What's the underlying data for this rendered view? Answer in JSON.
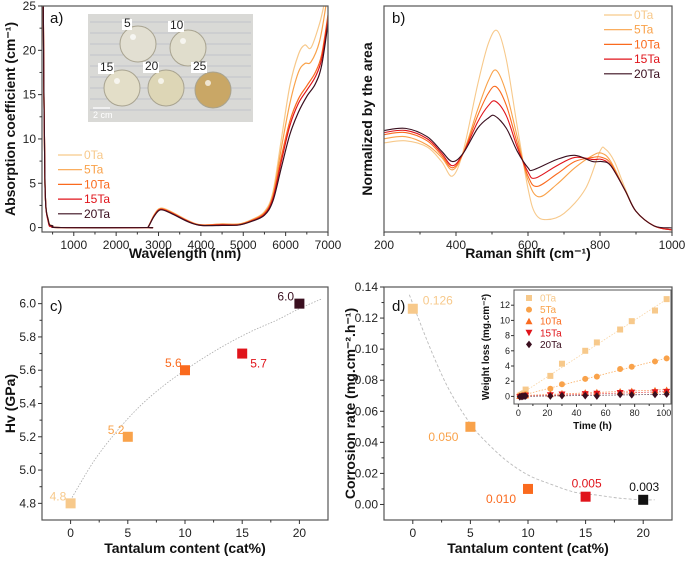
{
  "colors": {
    "0Ta": "#f7c98b",
    "5Ta": "#f9a24a",
    "10Ta": "#fa6a1e",
    "15Ta": "#e0141b",
    "20Ta": "#3a0f1f",
    "20Ta_d": "#111111"
  },
  "chart_data": [
    {
      "id": "a",
      "type": "line",
      "panel_label": "a)",
      "title": "",
      "xlabel": "Wavelength (nm)",
      "ylabel": "Absorption coefficient (cm⁻¹)",
      "xlim": [
        250,
        7000
      ],
      "ylim": [
        -0.5,
        25
      ],
      "xticks": [
        1000,
        2000,
        3000,
        4000,
        5000,
        6000,
        7000
      ],
      "yticks": [
        0,
        5,
        10,
        15,
        20,
        25
      ],
      "legend": {
        "placement": "left-middle",
        "entries": [
          "0Ta",
          "5Ta",
          "10Ta",
          "15Ta",
          "20Ta"
        ]
      },
      "inset_photo": {
        "labels": [
          "5",
          "10",
          "15",
          "20",
          "25"
        ],
        "scale_bar": "2 cm"
      },
      "series": [
        {
          "name": "0Ta",
          "x": [
            280,
            320,
            400,
            500,
            700,
            2700,
            2760,
            2900,
            3050,
            3300,
            3700,
            4000,
            4500,
            4900,
            5200,
            5500,
            5700,
            5900,
            6100,
            6300,
            6450,
            6600,
            6800,
            6900
          ],
          "y": [
            25,
            5,
            0.9,
            0.2,
            0,
            0,
            0.1,
            1.5,
            2.2,
            1.8,
            0.8,
            0.3,
            0.4,
            0.4,
            0.9,
            1.8,
            4,
            10,
            16,
            19.5,
            20.6,
            20.3,
            23,
            25
          ]
        },
        {
          "name": "5Ta",
          "x": [
            280,
            320,
            400,
            500,
            700,
            2700,
            2760,
            2900,
            3050,
            3300,
            3700,
            4000,
            4500,
            4900,
            5200,
            5500,
            5700,
            5900,
            6100,
            6300,
            6450,
            6600,
            6800,
            6950
          ],
          "y": [
            25,
            5,
            0.8,
            0.2,
            0,
            0,
            0.1,
            1.4,
            2.15,
            1.75,
            0.75,
            0.3,
            0.4,
            0.4,
            0.85,
            1.7,
            3.7,
            9,
            14,
            17.5,
            18.5,
            18.7,
            21,
            25
          ]
        },
        {
          "name": "10Ta",
          "x": [
            280,
            320,
            400,
            500,
            700,
            2700,
            2760,
            2900,
            3050,
            3300,
            3700,
            4000,
            4500,
            4900,
            5200,
            5500,
            5700,
            5900,
            6100,
            6300,
            6500,
            6700,
            6850,
            7000
          ],
          "y": [
            25,
            5,
            0.7,
            0.15,
            0,
            0,
            0.1,
            1.4,
            2.1,
            1.7,
            0.7,
            0.3,
            0.35,
            0.35,
            0.8,
            1.6,
            3.4,
            8,
            12,
            14.5,
            16,
            17.5,
            19.5,
            24
          ]
        },
        {
          "name": "15Ta",
          "x": [
            280,
            320,
            400,
            500,
            700,
            2700,
            2760,
            2900,
            3050,
            3300,
            3700,
            4000,
            4500,
            4900,
            5200,
            5500,
            5700,
            5900,
            6100,
            6300,
            6500,
            6700,
            6850,
            7000
          ],
          "y": [
            25,
            5,
            0.6,
            0.15,
            0,
            0,
            0.1,
            1.35,
            2.05,
            1.65,
            0.7,
            0.25,
            0.3,
            0.3,
            0.75,
            1.5,
            3.3,
            7.5,
            11.5,
            14,
            15.5,
            17,
            19,
            23.5
          ]
        },
        {
          "name": "20Ta",
          "x": [
            280,
            320,
            400,
            500,
            700,
            2700,
            2760,
            2900,
            3050,
            3300,
            3700,
            4000,
            4500,
            4900,
            5200,
            5500,
            5700,
            5900,
            6100,
            6300,
            6500,
            6700,
            6850,
            7000
          ],
          "y": [
            25,
            5,
            0.8,
            0.2,
            0,
            0,
            0.1,
            1.3,
            2.0,
            1.6,
            0.65,
            0.25,
            0.25,
            0.3,
            0.7,
            1.4,
            3.0,
            6.8,
            10.5,
            13,
            14.8,
            16.2,
            18.3,
            23
          ]
        }
      ]
    },
    {
      "id": "b",
      "type": "line",
      "panel_label": "b)",
      "xlabel": "Raman shift (cm⁻¹)",
      "ylabel": "Normalized by the area",
      "xlim": [
        200,
        1000
      ],
      "ylim": [
        0,
        1
      ],
      "xticks": [
        200,
        400,
        600,
        800,
        1000
      ],
      "yticks": [],
      "legend": {
        "placement": "top-right",
        "entries": [
          "0Ta",
          "5Ta",
          "10Ta",
          "15Ta",
          "20Ta"
        ]
      },
      "series": [
        {
          "name": "0Ta",
          "x": [
            200,
            260,
            320,
            360,
            390,
            420,
            460,
            490,
            515,
            540,
            570,
            600,
            620,
            650,
            700,
            760,
            800,
            815,
            840,
            870,
            900,
            950,
            1000
          ],
          "y": [
            0.42,
            0.43,
            0.4,
            0.33,
            0.26,
            0.38,
            0.7,
            0.9,
            0.96,
            0.82,
            0.5,
            0.2,
            0.08,
            0.05,
            0.08,
            0.2,
            0.38,
            0.39,
            0.33,
            0.2,
            0.09,
            0.02,
            0.0
          ]
        },
        {
          "name": "5Ta",
          "x": [
            200,
            260,
            320,
            360,
            390,
            420,
            460,
            490,
            512,
            540,
            570,
            600,
            630,
            680,
            730,
            780,
            805,
            830,
            870,
            900,
            950,
            1000
          ],
          "y": [
            0.44,
            0.45,
            0.41,
            0.35,
            0.29,
            0.37,
            0.58,
            0.72,
            0.77,
            0.66,
            0.45,
            0.24,
            0.16,
            0.22,
            0.3,
            0.36,
            0.37,
            0.33,
            0.19,
            0.09,
            0.02,
            0.0
          ]
        },
        {
          "name": "10Ta",
          "x": [
            200,
            260,
            320,
            360,
            390,
            420,
            460,
            490,
            512,
            540,
            570,
            600,
            625,
            680,
            730,
            780,
            805,
            830,
            870,
            900,
            950,
            1000
          ],
          "y": [
            0.46,
            0.47,
            0.43,
            0.36,
            0.3,
            0.37,
            0.55,
            0.66,
            0.69,
            0.6,
            0.42,
            0.26,
            0.21,
            0.27,
            0.33,
            0.35,
            0.35,
            0.32,
            0.19,
            0.09,
            0.02,
            0.0
          ]
        },
        {
          "name": "15Ta",
          "x": [
            200,
            260,
            320,
            360,
            390,
            420,
            460,
            490,
            510,
            540,
            570,
            600,
            620,
            680,
            730,
            780,
            805,
            830,
            870,
            900,
            950,
            1000
          ],
          "y": [
            0.47,
            0.48,
            0.44,
            0.37,
            0.31,
            0.37,
            0.52,
            0.6,
            0.62,
            0.55,
            0.4,
            0.28,
            0.25,
            0.31,
            0.35,
            0.34,
            0.34,
            0.31,
            0.19,
            0.09,
            0.02,
            0.0
          ]
        },
        {
          "name": "20Ta",
          "x": [
            200,
            260,
            320,
            360,
            390,
            420,
            460,
            490,
            508,
            540,
            570,
            600,
            615,
            680,
            730,
            780,
            805,
            830,
            870,
            900,
            950,
            1000
          ],
          "y": [
            0.48,
            0.49,
            0.45,
            0.38,
            0.33,
            0.37,
            0.49,
            0.54,
            0.55,
            0.49,
            0.38,
            0.3,
            0.29,
            0.34,
            0.36,
            0.33,
            0.33,
            0.31,
            0.19,
            0.09,
            0.02,
            0.01
          ]
        }
      ]
    },
    {
      "id": "c",
      "type": "scatter",
      "panel_label": "c)",
      "xlabel": "Tantalum content (cat%)",
      "ylabel": "Hv (GPa)",
      "xlim": [
        -2.5,
        22.5
      ],
      "ylim": [
        4.7,
        6.1
      ],
      "xticks": [
        0,
        5,
        10,
        15,
        20
      ],
      "yticks": [
        4.8,
        5.0,
        5.2,
        5.4,
        5.6,
        5.8,
        6.0
      ],
      "points": [
        {
          "name": "0Ta",
          "x": 0,
          "y": 4.8,
          "label": "4.8"
        },
        {
          "name": "5Ta",
          "x": 5,
          "y": 5.2,
          "label": "5.2"
        },
        {
          "name": "10Ta",
          "x": 10,
          "y": 5.6,
          "label": "5.6"
        },
        {
          "name": "15Ta",
          "x": 15,
          "y": 5.7,
          "label": "5.7"
        },
        {
          "name": "20Ta",
          "x": 20,
          "y": 6.0,
          "label": "6.0"
        }
      ],
      "fit": {
        "style": "dotted",
        "x": [
          0,
          2,
          4,
          6,
          8,
          10,
          12,
          14,
          16,
          18,
          20,
          22
        ],
        "y": [
          4.82,
          5.05,
          5.23,
          5.38,
          5.5,
          5.6,
          5.69,
          5.77,
          5.84,
          5.9,
          5.97,
          6.03
        ]
      }
    },
    {
      "id": "d",
      "type": "scatter",
      "panel_label": "d)",
      "xlabel": "Tantalum content (cat%)",
      "ylabel": "Corrosion rate (mg.cm⁻².h⁻¹)",
      "xlim": [
        -2.5,
        22.5
      ],
      "ylim": [
        -0.01,
        0.14
      ],
      "xticks": [
        0,
        5,
        10,
        15,
        20
      ],
      "yticks": [
        0.0,
        0.02,
        0.04,
        0.06,
        0.08,
        0.1,
        0.12,
        0.14
      ],
      "points": [
        {
          "name": "0Ta",
          "x": 0,
          "y": 0.126,
          "label": "0.126"
        },
        {
          "name": "5Ta",
          "x": 5,
          "y": 0.05,
          "label": "0.050"
        },
        {
          "name": "10Ta",
          "x": 10,
          "y": 0.01,
          "label": "0.010"
        },
        {
          "name": "15Ta",
          "x": 15,
          "y": 0.005,
          "label": "0.005"
        },
        {
          "name": "20Ta",
          "x": 20,
          "y": 0.003,
          "label": "0.003"
        }
      ],
      "fit": {
        "style": "dashed",
        "x": [
          -0.3,
          1,
          2,
          3,
          4,
          5,
          6,
          8,
          10,
          12,
          14,
          16,
          18,
          20,
          21
        ],
        "y": [
          0.135,
          0.11,
          0.092,
          0.076,
          0.063,
          0.052,
          0.043,
          0.029,
          0.019,
          0.013,
          0.008,
          0.006,
          0.004,
          0.003,
          0.003
        ]
      },
      "inset": {
        "type": "scatter",
        "xlabel": "Time (h)",
        "ylabel": "Weight loss (mg.cm⁻²)",
        "xlim": [
          -3,
          105
        ],
        "ylim": [
          -1,
          14
        ],
        "xticks": [
          0,
          20,
          40,
          60,
          80,
          100
        ],
        "yticks": [
          0,
          2,
          4,
          6,
          8,
          10,
          12
        ],
        "legend": {
          "placement": "top-left",
          "entries": [
            "0Ta",
            "5Ta",
            "10Ta",
            "15Ta",
            "20Ta"
          ]
        },
        "series": [
          {
            "name": "0Ta",
            "marker": "square",
            "x": [
              1,
              2,
              3,
              4,
              5,
              22,
              30,
              46,
              54,
              70,
              78,
              94,
              102
            ],
            "y": [
              0.1,
              0.2,
              0.3,
              0.4,
              0.9,
              2.7,
              4.3,
              6.0,
              7.1,
              8.8,
              9.9,
              11.3,
              12.8
            ]
          },
          {
            "name": "5Ta",
            "marker": "circle",
            "x": [
              1,
              2,
              3,
              4,
              5,
              22,
              30,
              46,
              54,
              70,
              78,
              94,
              102
            ],
            "y": [
              0.05,
              0.1,
              0.15,
              0.2,
              0.3,
              1.0,
              1.6,
              2.3,
              2.6,
              3.6,
              3.9,
              4.6,
              5.0
            ]
          },
          {
            "name": "10Ta",
            "marker": "triangle-up",
            "x": [
              1,
              2,
              3,
              4,
              5,
              22,
              30,
              46,
              54,
              70,
              78,
              94,
              102
            ],
            "y": [
              0.05,
              0.05,
              0.1,
              0.1,
              0.15,
              0.3,
              0.4,
              0.5,
              0.55,
              0.65,
              0.7,
              0.8,
              0.85
            ]
          },
          {
            "name": "15Ta",
            "marker": "triangle-down",
            "x": [
              1,
              2,
              3,
              4,
              5,
              22,
              30,
              46,
              54,
              70,
              78,
              94,
              102
            ],
            "y": [
              -0.1,
              -0.05,
              0,
              0.05,
              0.1,
              0.15,
              0.25,
              0.3,
              0.35,
              0.45,
              0.5,
              0.55,
              0.6
            ]
          },
          {
            "name": "20Ta",
            "marker": "diamond",
            "x": [
              1,
              2,
              3,
              4,
              5,
              22,
              30,
              46,
              54,
              70,
              78,
              94,
              102
            ],
            "y": [
              -0.05,
              0,
              0,
              0.05,
              0.05,
              0.05,
              0.1,
              0.1,
              0.05,
              0.25,
              0.2,
              0.25,
              0.3
            ]
          }
        ]
      }
    }
  ]
}
